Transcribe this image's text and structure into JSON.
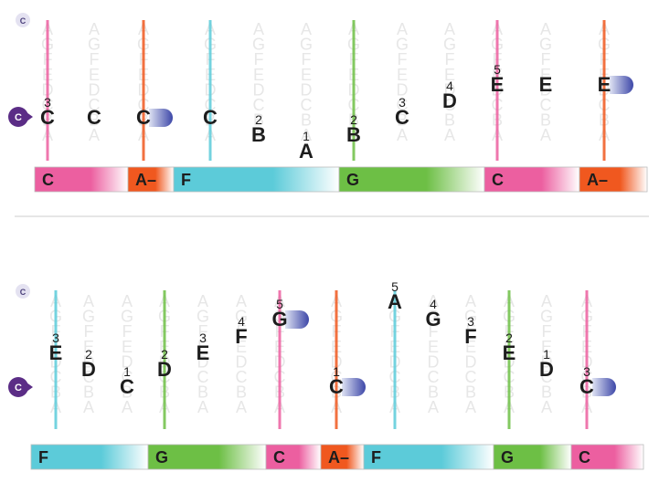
{
  "colors": {
    "C": "#ec5fa0",
    "A-": "#f0581f",
    "F": "#5ccbd9",
    "G": "#6dbf45",
    "ghost": "#e7e7e7",
    "badge": "#5b2d86",
    "divider": "#dddddd"
  },
  "ghost_letters": [
    "A",
    "G",
    "F",
    "E",
    "D",
    "C",
    "B",
    "A"
  ],
  "rows": [
    {
      "key_badge": "C",
      "start_badge": "C",
      "bars": [
        {
          "chord": "C",
          "label": "C"
        },
        {
          "chord": "A-",
          "label": "A–"
        },
        {
          "chord": "F",
          "label": "F"
        },
        {
          "chord": "G",
          "label": "G"
        },
        {
          "chord": "C",
          "label": "C"
        },
        {
          "chord": "A-",
          "label": "A–"
        }
      ],
      "notes": [
        {
          "letter": "C",
          "finger": "3",
          "bar_line": "C",
          "tail": false
        },
        {
          "letter": "C",
          "finger": "",
          "bar_line": "",
          "tail": false
        },
        {
          "letter": "C",
          "finger": "",
          "bar_line": "A-",
          "tail": true
        },
        {
          "letter": "C",
          "finger": "",
          "bar_line": "F",
          "tail": false
        },
        {
          "letter": "B",
          "finger": "2",
          "bar_line": "",
          "tail": false
        },
        {
          "letter": "A",
          "finger": "1",
          "bar_line": "",
          "tail": false
        },
        {
          "letter": "B",
          "finger": "2",
          "bar_line": "G",
          "tail": false
        },
        {
          "letter": "C",
          "finger": "3",
          "bar_line": "",
          "tail": false
        },
        {
          "letter": "D",
          "finger": "4",
          "bar_line": "",
          "tail": false
        },
        {
          "letter": "E",
          "finger": "5",
          "bar_line": "C",
          "tail": false
        },
        {
          "letter": "E",
          "finger": "",
          "bar_line": "",
          "tail": false
        },
        {
          "letter": "E",
          "finger": "",
          "bar_line": "A-",
          "tail": true
        }
      ]
    },
    {
      "key_badge": "C",
      "start_badge": "C",
      "bars": [
        {
          "chord": "F",
          "label": "F"
        },
        {
          "chord": "G",
          "label": "G"
        },
        {
          "chord": "C",
          "label": "C"
        },
        {
          "chord": "A-",
          "label": "A–"
        },
        {
          "chord": "F",
          "label": "F"
        },
        {
          "chord": "G",
          "label": "G"
        },
        {
          "chord": "C",
          "label": "C"
        }
      ],
      "notes": [
        {
          "letter": "E",
          "finger": "3",
          "bar_line": "F",
          "tail": false
        },
        {
          "letter": "D",
          "finger": "2",
          "bar_line": "",
          "tail": false
        },
        {
          "letter": "C",
          "finger": "1",
          "bar_line": "",
          "tail": false
        },
        {
          "letter": "D",
          "finger": "2",
          "bar_line": "G",
          "tail": false
        },
        {
          "letter": "E",
          "finger": "3",
          "bar_line": "",
          "tail": false
        },
        {
          "letter": "F",
          "finger": "4",
          "bar_line": "",
          "tail": false
        },
        {
          "letter": "G",
          "finger": "5",
          "bar_line": "C",
          "tail": true
        },
        {
          "letter": "C",
          "finger": "1",
          "bar_line": "A-",
          "tail": true
        },
        {
          "letter": "A",
          "finger": "5",
          "bar_line": "F",
          "tail": false
        },
        {
          "letter": "G",
          "finger": "4",
          "bar_line": "",
          "tail": false
        },
        {
          "letter": "F",
          "finger": "3",
          "bar_line": "",
          "tail": false
        },
        {
          "letter": "E",
          "finger": "2",
          "bar_line": "G",
          "tail": false
        },
        {
          "letter": "D",
          "finger": "1",
          "bar_line": "",
          "tail": false
        },
        {
          "letter": "C",
          "finger": "3",
          "bar_line": "C",
          "tail": true
        }
      ]
    }
  ]
}
